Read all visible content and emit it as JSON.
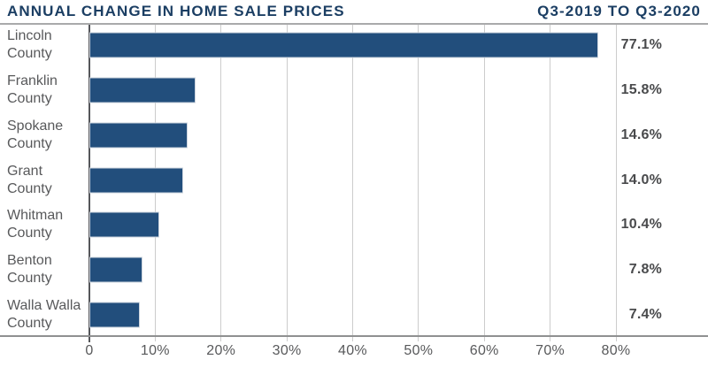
{
  "header": {
    "title": "ANNUAL CHANGE IN HOME SALE PRICES",
    "period": "Q3-2019 TO Q3-2020"
  },
  "chart_data": {
    "type": "bar",
    "orientation": "horizontal",
    "title": "ANNUAL CHANGE IN HOME SALE PRICES",
    "subtitle": "Q3-2019 TO Q3-2020",
    "categories": [
      "Lincoln County",
      "Franklin County",
      "Spokane County",
      "Grant County",
      "Whitman County",
      "Benton County",
      "Walla Walla County"
    ],
    "categories_lines": [
      [
        "Lincoln",
        "County"
      ],
      [
        "Franklin",
        "County"
      ],
      [
        "Spokane",
        "County"
      ],
      [
        "Grant",
        "County"
      ],
      [
        "Whitman",
        "County"
      ],
      [
        "Benton",
        "County"
      ],
      [
        "Walla Walla",
        "County"
      ]
    ],
    "values": [
      77.1,
      15.8,
      14.6,
      14.0,
      10.4,
      7.8,
      7.4
    ],
    "value_labels": [
      "77.1%",
      "15.8%",
      "14.6%",
      "14.0%",
      "10.4%",
      "7.8%",
      "7.4%"
    ],
    "xlabel": "",
    "ylabel": "",
    "xlim": [
      0,
      80
    ],
    "xticks": [
      {
        "value": 0,
        "label": "0"
      },
      {
        "value": 10,
        "label": "10%"
      },
      {
        "value": 20,
        "label": "20%"
      },
      {
        "value": 30,
        "label": "30%"
      },
      {
        "value": 40,
        "label": "40%"
      },
      {
        "value": 50,
        "label": "50%"
      },
      {
        "value": 60,
        "label": "60%"
      },
      {
        "value": 70,
        "label": "70%"
      },
      {
        "value": 80,
        "label": "80%"
      }
    ],
    "grid": "vertical-gridlines",
    "legend": "none",
    "bar_color": "#224e7c"
  },
  "colors": {
    "title_navy": "#1b3e63",
    "bar_navy": "#224e7c",
    "label_gray": "#58595b",
    "value_gray": "#494a4c",
    "gridline_gray": "#cccccc",
    "axis_gray": "#8f9091",
    "zero_line_gray": "#55565a",
    "background": "#ffffff"
  }
}
